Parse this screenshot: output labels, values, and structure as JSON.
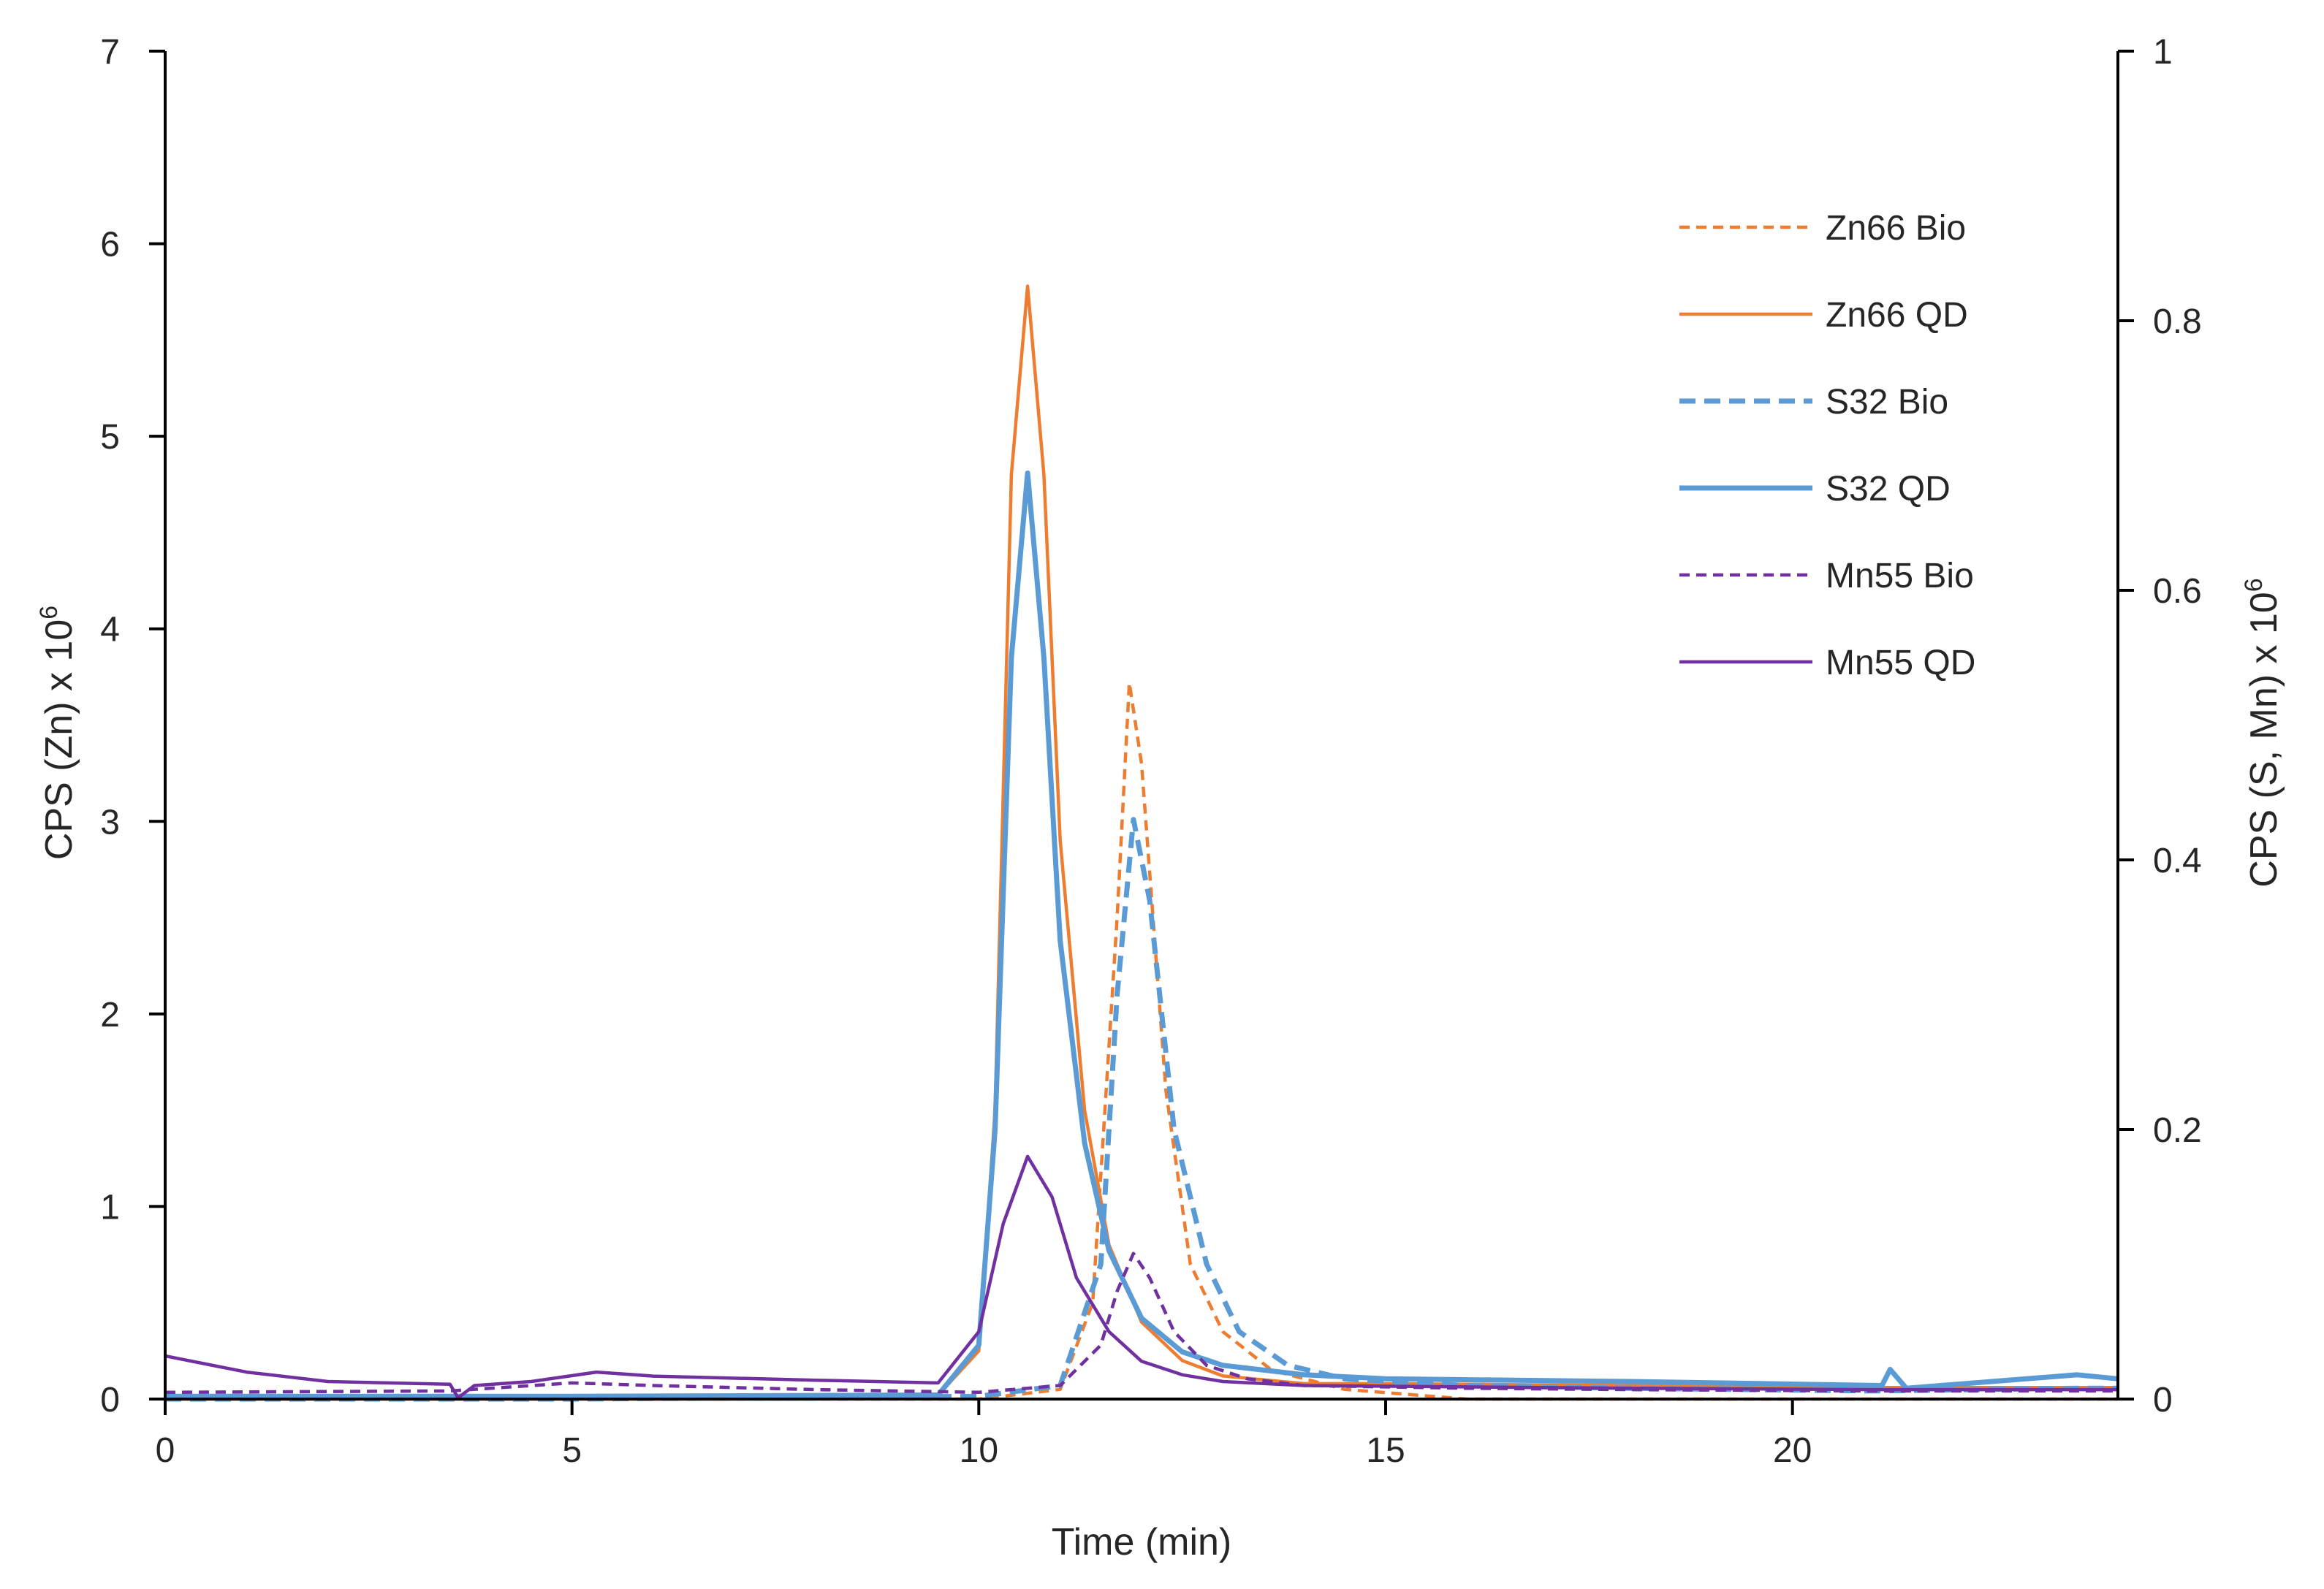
{
  "chart_data": {
    "type": "line",
    "title": "",
    "xlabel": "Time (min)",
    "ylabel_left": "CPS (Zn) x 10",
    "ylabel_left_sup": "6",
    "ylabel_right": "CPS (S, Mn) x 10",
    "ylabel_right_sup": "6",
    "xlim": [
      0,
      24
    ],
    "ylim_left": [
      0,
      7
    ],
    "ylim_right": [
      0,
      1
    ],
    "x_ticks": [
      "0",
      "5",
      "10",
      "15",
      "20"
    ],
    "y_left_ticks": [
      "0",
      "1",
      "2",
      "3",
      "4",
      "5",
      "6",
      "7"
    ],
    "y_right_ticks": [
      "0",
      "0.2",
      "0.4",
      "0.6",
      "0.8",
      "1"
    ],
    "grid": false,
    "legend_position": "top-right",
    "series": [
      {
        "name": "Zn66 Bio",
        "axis": "left",
        "color": "#ED7D31",
        "dash": "dashed",
        "x": [
          0,
          5,
          10,
          11,
          11.4,
          11.7,
          11.85,
          12.0,
          12.3,
          12.6,
          13.0,
          13.6,
          14.5,
          16,
          18,
          21,
          24
        ],
        "y": [
          0.0,
          0.0,
          0.0,
          0.05,
          0.5,
          2.5,
          3.72,
          3.3,
          1.6,
          0.7,
          0.35,
          0.15,
          0.05,
          0.0,
          0.0,
          0.0,
          0.0
        ]
      },
      {
        "name": "Zn66 QD",
        "axis": "left",
        "color": "#ED7D31",
        "dash": "solid",
        "x": [
          0,
          3,
          5,
          8,
          9.5,
          10.0,
          10.2,
          10.4,
          10.6,
          10.8,
          11.0,
          11.3,
          11.6,
          12.0,
          12.5,
          13.0,
          14.0,
          15,
          18,
          21,
          24
        ],
        "y": [
          0.0,
          0.0,
          0.0,
          0.0,
          0.02,
          0.25,
          1.5,
          4.8,
          5.78,
          4.8,
          2.9,
          1.5,
          0.8,
          0.4,
          0.2,
          0.12,
          0.08,
          0.08,
          0.07,
          0.06,
          0.06
        ]
      },
      {
        "name": "S32 Bio",
        "axis": "right",
        "color": "#5B9BD5",
        "dash": "dashed",
        "x": [
          0,
          5,
          10,
          11,
          11.5,
          11.7,
          11.9,
          12.1,
          12.4,
          12.8,
          13.2,
          13.8,
          14.5,
          16,
          18,
          21,
          23.5,
          24
        ],
        "y": [
          0.0,
          0.0,
          0.002,
          0.01,
          0.1,
          0.3,
          0.43,
          0.37,
          0.2,
          0.1,
          0.05,
          0.025,
          0.015,
          0.01,
          0.008,
          0.006,
          0.008,
          0.008
        ]
      },
      {
        "name": "S32 QD",
        "axis": "right",
        "color": "#5B9BD5",
        "dash": "solid",
        "x": [
          0,
          5,
          9.5,
          10.0,
          10.2,
          10.4,
          10.6,
          10.8,
          11.0,
          11.3,
          11.6,
          12.0,
          12.5,
          13.0,
          14.0,
          15,
          18,
          21.1,
          21.2,
          21.4,
          23.5,
          24
        ],
        "y": [
          0.002,
          0.002,
          0.003,
          0.04,
          0.2,
          0.55,
          0.687,
          0.55,
          0.34,
          0.19,
          0.11,
          0.06,
          0.035,
          0.025,
          0.018,
          0.015,
          0.013,
          0.01,
          0.022,
          0.008,
          0.018,
          0.015
        ]
      },
      {
        "name": "Mn55 Bio",
        "axis": "right",
        "color": "#7030A0",
        "dash": "dashed",
        "x": [
          0,
          3.5,
          5,
          6,
          8,
          10,
          11,
          11.5,
          11.7,
          11.9,
          12.1,
          12.4,
          12.8,
          13.3,
          14,
          16,
          18,
          21,
          24
        ],
        "y": [
          0.005,
          0.006,
          0.012,
          0.01,
          0.007,
          0.005,
          0.01,
          0.04,
          0.08,
          0.108,
          0.09,
          0.05,
          0.025,
          0.015,
          0.01,
          0.008,
          0.007,
          0.006,
          0.006
        ]
      },
      {
        "name": "Mn55 QD",
        "axis": "right",
        "color": "#7030A0",
        "dash": "solid",
        "x": [
          0,
          1,
          2,
          3.5,
          3.6,
          3.8,
          4.5,
          5.3,
          6,
          8,
          9.5,
          10.0,
          10.3,
          10.6,
          10.9,
          11.2,
          11.6,
          12.0,
          12.5,
          13,
          14,
          16,
          18,
          21,
          24
        ],
        "y": [
          0.032,
          0.02,
          0.013,
          0.011,
          0.001,
          0.01,
          0.013,
          0.02,
          0.017,
          0.014,
          0.012,
          0.05,
          0.13,
          0.18,
          0.15,
          0.09,
          0.05,
          0.028,
          0.018,
          0.013,
          0.01,
          0.009,
          0.008,
          0.007,
          0.007
        ]
      }
    ]
  }
}
